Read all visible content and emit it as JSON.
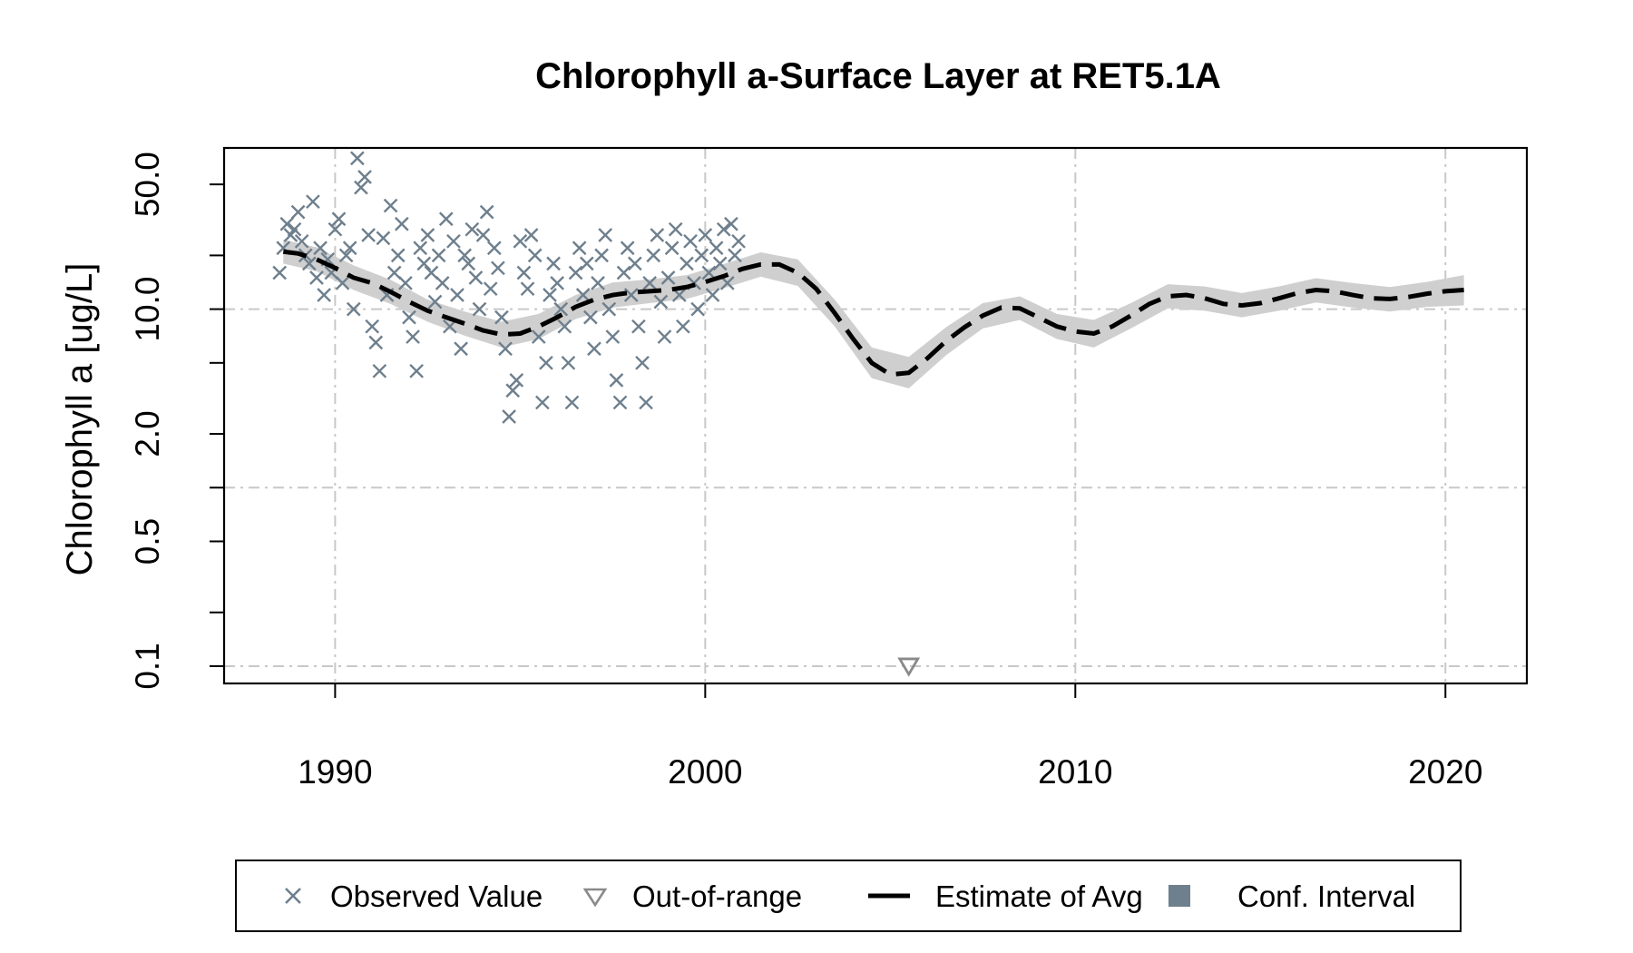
{
  "chart_data": {
    "type": "scatter",
    "title": "Chlorophyll a-Surface Layer at RET5.1A",
    "xlabel": "",
    "ylabel": "Chlorophyll a [ug/L]",
    "y_scale": "log",
    "xlim": [
      1987,
      2022.2
    ],
    "ylim": [
      0.08,
      80
    ],
    "x_ticks": [
      "1990",
      "2000",
      "2010",
      "2020"
    ],
    "x_tick_values": [
      1990,
      2000,
      2010,
      2020
    ],
    "y_ticks": [
      "0.1",
      "0.5",
      "2.0",
      "10.0",
      "50.0"
    ],
    "y_tick_values": [
      0.1,
      0.5,
      2.0,
      10.0,
      50.0
    ],
    "y_minor_ticks": [
      0.2,
      1.0,
      5.0,
      20.0
    ],
    "grid": true,
    "legend_position": "bottom",
    "legend": [
      {
        "label": "Observed Value",
        "symbol": "x-mark"
      },
      {
        "label": "Out-of-range",
        "symbol": "triangle-down"
      },
      {
        "label": "Estimate of Avg",
        "symbol": "dashed-line"
      },
      {
        "label": "Conf. Interval",
        "symbol": "filled-square"
      }
    ],
    "colors": {
      "points": "#6e7f8d",
      "out_of_range": "#8a8a8a",
      "estimate": "#000000",
      "conf_band": "#cfcfcf",
      "conf_legend": "#6e7f8d",
      "grid": "#c8c8c8"
    },
    "series": [
      {
        "name": "Observed Value",
        "points": [
          [
            1988.5,
            16
          ],
          [
            1988.6,
            22
          ],
          [
            1988.7,
            30
          ],
          [
            1988.8,
            26
          ],
          [
            1988.9,
            28
          ],
          [
            1989.0,
            35
          ],
          [
            1989.1,
            24
          ],
          [
            1989.2,
            20
          ],
          [
            1989.3,
            18
          ],
          [
            1989.4,
            40
          ],
          [
            1989.5,
            15
          ],
          [
            1989.6,
            22
          ],
          [
            1989.7,
            12
          ],
          [
            1989.8,
            19
          ],
          [
            1989.9,
            16
          ],
          [
            1990.0,
            28
          ],
          [
            1990.1,
            32
          ],
          [
            1990.2,
            14
          ],
          [
            1990.3,
            20
          ],
          [
            1990.4,
            22
          ],
          [
            1990.5,
            10
          ],
          [
            1990.6,
            70
          ],
          [
            1990.7,
            48
          ],
          [
            1990.8,
            55
          ],
          [
            1990.9,
            26
          ],
          [
            1991.0,
            8
          ],
          [
            1991.1,
            6.5
          ],
          [
            1991.2,
            4.5
          ],
          [
            1991.3,
            25
          ],
          [
            1991.4,
            12
          ],
          [
            1991.5,
            38
          ],
          [
            1991.6,
            16
          ],
          [
            1991.7,
            20
          ],
          [
            1991.8,
            30
          ],
          [
            1991.9,
            14
          ],
          [
            1992.0,
            9
          ],
          [
            1992.1,
            7
          ],
          [
            1992.2,
            4.5
          ],
          [
            1992.3,
            22
          ],
          [
            1992.4,
            18
          ],
          [
            1992.5,
            26
          ],
          [
            1992.6,
            16
          ],
          [
            1992.7,
            11
          ],
          [
            1992.8,
            20
          ],
          [
            1992.9,
            14
          ],
          [
            1993.0,
            32
          ],
          [
            1993.1,
            8
          ],
          [
            1993.2,
            24
          ],
          [
            1993.3,
            12
          ],
          [
            1993.4,
            6
          ],
          [
            1993.5,
            20
          ],
          [
            1993.6,
            18
          ],
          [
            1993.7,
            28
          ],
          [
            1993.8,
            15
          ],
          [
            1993.9,
            10
          ],
          [
            1994.0,
            26
          ],
          [
            1994.1,
            35
          ],
          [
            1994.2,
            13
          ],
          [
            1994.3,
            22
          ],
          [
            1994.4,
            17
          ],
          [
            1994.5,
            9
          ],
          [
            1994.6,
            6
          ],
          [
            1994.7,
            2.5
          ],
          [
            1994.8,
            3.5
          ],
          [
            1994.9,
            4
          ],
          [
            1995.0,
            24
          ],
          [
            1995.1,
            16
          ],
          [
            1995.2,
            13
          ],
          [
            1995.3,
            26
          ],
          [
            1995.4,
            20
          ],
          [
            1995.5,
            7
          ],
          [
            1995.6,
            3
          ],
          [
            1995.7,
            5
          ],
          [
            1995.8,
            12
          ],
          [
            1995.9,
            18
          ],
          [
            1996.0,
            14
          ],
          [
            1996.1,
            10
          ],
          [
            1996.2,
            8
          ],
          [
            1996.3,
            5
          ],
          [
            1996.4,
            3
          ],
          [
            1996.5,
            16
          ],
          [
            1996.6,
            22
          ],
          [
            1996.7,
            12
          ],
          [
            1996.8,
            18
          ],
          [
            1996.9,
            9
          ],
          [
            1997.0,
            6
          ],
          [
            1997.1,
            14
          ],
          [
            1997.2,
            20
          ],
          [
            1997.3,
            26
          ],
          [
            1997.4,
            10
          ],
          [
            1997.5,
            7
          ],
          [
            1997.6,
            4
          ],
          [
            1997.7,
            3
          ],
          [
            1997.8,
            16
          ],
          [
            1997.9,
            22
          ],
          [
            1998.0,
            12
          ],
          [
            1998.1,
            18
          ],
          [
            1998.2,
            8
          ],
          [
            1998.3,
            5
          ],
          [
            1998.4,
            3
          ],
          [
            1998.5,
            14
          ],
          [
            1998.6,
            20
          ],
          [
            1998.7,
            26
          ],
          [
            1998.8,
            11
          ],
          [
            1998.9,
            7
          ],
          [
            1999.0,
            15
          ],
          [
            1999.1,
            22
          ],
          [
            1999.2,
            28
          ],
          [
            1999.3,
            12
          ],
          [
            1999.4,
            8
          ],
          [
            1999.5,
            18
          ],
          [
            1999.6,
            24
          ],
          [
            1999.7,
            14
          ],
          [
            1999.8,
            10
          ],
          [
            1999.9,
            20
          ],
          [
            2000.0,
            26
          ],
          [
            2000.1,
            16
          ],
          [
            2000.2,
            12
          ],
          [
            2000.3,
            22
          ],
          [
            2000.4,
            18
          ],
          [
            2000.5,
            28
          ],
          [
            2000.6,
            14
          ],
          [
            2000.7,
            30
          ],
          [
            2000.8,
            20
          ],
          [
            2000.9,
            24
          ]
        ]
      },
      {
        "name": "Out-of-range",
        "points": [
          [
            2005.5,
            0.1
          ]
        ]
      },
      {
        "name": "Estimate of Avg",
        "points": [
          [
            1988.6,
            21
          ],
          [
            1989.0,
            20.5
          ],
          [
            1989.5,
            19
          ],
          [
            1990.0,
            17
          ],
          [
            1990.5,
            15
          ],
          [
            1991.0,
            14
          ],
          [
            1991.5,
            12.5
          ],
          [
            1992.0,
            11
          ],
          [
            1992.5,
            9.8
          ],
          [
            1993.0,
            9
          ],
          [
            1993.5,
            8.3
          ],
          [
            1994.0,
            7.6
          ],
          [
            1994.5,
            7.2
          ],
          [
            1995.0,
            7.3
          ],
          [
            1995.5,
            8
          ],
          [
            1996.0,
            9
          ],
          [
            1996.5,
            10.3
          ],
          [
            1997.0,
            11.3
          ],
          [
            1997.5,
            12
          ],
          [
            1998.0,
            12.4
          ],
          [
            1998.5,
            12.6
          ],
          [
            1999.0,
            12.8
          ],
          [
            1999.5,
            13.3
          ],
          [
            2000.0,
            14.2
          ],
          [
            2000.5,
            15.3
          ],
          [
            2001.0,
            16.8
          ],
          [
            2001.5,
            17.8
          ],
          [
            2002.0,
            17.8
          ],
          [
            2002.5,
            16
          ],
          [
            2003.0,
            13
          ],
          [
            2003.5,
            9.5
          ],
          [
            2004.0,
            6.8
          ],
          [
            2004.5,
            5
          ],
          [
            2005.0,
            4.3
          ],
          [
            2005.5,
            4.4
          ],
          [
            2006.0,
            5.3
          ],
          [
            2006.5,
            6.6
          ],
          [
            2007.0,
            7.9
          ],
          [
            2007.5,
            9.2
          ],
          [
            2008.0,
            10.2
          ],
          [
            2008.5,
            10.1
          ],
          [
            2009.0,
            9
          ],
          [
            2009.5,
            8
          ],
          [
            2010.0,
            7.5
          ],
          [
            2010.5,
            7.3
          ],
          [
            2011.0,
            8
          ],
          [
            2011.5,
            9.2
          ],
          [
            2012.0,
            10.7
          ],
          [
            2012.5,
            11.8
          ],
          [
            2013.0,
            12
          ],
          [
            2013.5,
            11.5
          ],
          [
            2014.0,
            10.7
          ],
          [
            2014.5,
            10.5
          ],
          [
            2015.0,
            10.8
          ],
          [
            2015.5,
            11.5
          ],
          [
            2016.0,
            12.3
          ],
          [
            2016.5,
            12.8
          ],
          [
            2017.0,
            12.6
          ],
          [
            2017.5,
            12
          ],
          [
            2018.0,
            11.5
          ],
          [
            2018.5,
            11.4
          ],
          [
            2019.0,
            11.7
          ],
          [
            2019.5,
            12.2
          ],
          [
            2020.0,
            12.6
          ],
          [
            2020.5,
            12.8
          ]
        ]
      },
      {
        "name": "Conf. Interval",
        "lower": [
          [
            1988.6,
            18
          ],
          [
            1989.5,
            16.3
          ],
          [
            1990.5,
            12.8
          ],
          [
            1991.5,
            10.7
          ],
          [
            1992.5,
            8.5
          ],
          [
            1993.5,
            7.1
          ],
          [
            1994.5,
            6.1
          ],
          [
            1995.5,
            6.8
          ],
          [
            1996.5,
            8.8
          ],
          [
            1997.5,
            10.2
          ],
          [
            1998.5,
            10.8
          ],
          [
            1999.5,
            11.4
          ],
          [
            2000.5,
            13.1
          ],
          [
            2001.5,
            15.2
          ],
          [
            2002.5,
            13.5
          ],
          [
            2003.5,
            8
          ],
          [
            2004.5,
            4.1
          ],
          [
            2005.5,
            3.6
          ],
          [
            2006.5,
            5.5
          ],
          [
            2007.5,
            7.8
          ],
          [
            2008.5,
            8.7
          ],
          [
            2009.5,
            6.8
          ],
          [
            2010.5,
            6.1
          ],
          [
            2011.5,
            7.8
          ],
          [
            2012.5,
            10.1
          ],
          [
            2013.5,
            9.8
          ],
          [
            2014.5,
            9
          ],
          [
            2015.5,
            9.8
          ],
          [
            2016.5,
            10.9
          ],
          [
            2017.5,
            10.2
          ],
          [
            2018.5,
            9.7
          ],
          [
            2019.5,
            10.3
          ],
          [
            2020.5,
            10.5
          ]
        ],
        "upper": [
          [
            1988.6,
            24.5
          ],
          [
            1989.5,
            22.2
          ],
          [
            1990.5,
            17.6
          ],
          [
            1991.5,
            14.6
          ],
          [
            1992.5,
            11.3
          ],
          [
            1993.5,
            9.7
          ],
          [
            1994.5,
            8.5
          ],
          [
            1995.5,
            9.4
          ],
          [
            1996.5,
            12
          ],
          [
            1997.5,
            14.1
          ],
          [
            1998.5,
            14.7
          ],
          [
            1999.5,
            15.5
          ],
          [
            2000.5,
            17.9
          ],
          [
            2001.5,
            20.8
          ],
          [
            2002.5,
            19
          ],
          [
            2003.5,
            11.3
          ],
          [
            2004.5,
            6.1
          ],
          [
            2005.5,
            5.4
          ],
          [
            2006.5,
            7.9
          ],
          [
            2007.5,
            10.8
          ],
          [
            2008.5,
            11.8
          ],
          [
            2009.5,
            9.4
          ],
          [
            2010.5,
            8.7
          ],
          [
            2011.5,
            10.8
          ],
          [
            2012.5,
            13.8
          ],
          [
            2013.5,
            13.4
          ],
          [
            2014.5,
            12.3
          ],
          [
            2015.5,
            13.4
          ],
          [
            2016.5,
            14.9
          ],
          [
            2017.5,
            14
          ],
          [
            2018.5,
            13.3
          ],
          [
            2019.5,
            14.2
          ],
          [
            2020.5,
            15.5
          ]
        ]
      }
    ]
  }
}
